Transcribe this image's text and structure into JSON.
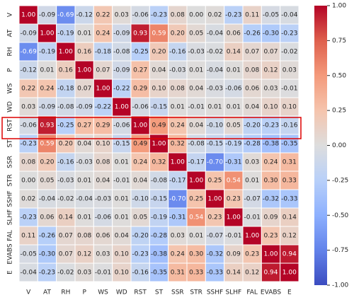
{
  "chart_data": {
    "type": "heatmap",
    "categories": [
      "V",
      "AT",
      "RH",
      "P",
      "WS",
      "WD",
      "RST",
      "ST",
      "SSR",
      "STR",
      "SSHF",
      "SLHF",
      "FAL",
      "EVABS",
      "E"
    ],
    "values": [
      [
        1.0,
        -0.09,
        -0.69,
        -0.12,
        0.22,
        0.03,
        -0.06,
        -0.23,
        0.08,
        0.0,
        0.02,
        -0.23,
        0.11,
        -0.05,
        -0.04
      ],
      [
        -0.09,
        1.0,
        -0.19,
        0.01,
        0.24,
        -0.09,
        0.93,
        0.59,
        0.2,
        0.05,
        -0.04,
        0.06,
        -0.26,
        -0.3,
        -0.23
      ],
      [
        -0.69,
        -0.19,
        1.0,
        0.16,
        -0.18,
        -0.08,
        -0.25,
        0.2,
        -0.16,
        -0.03,
        -0.02,
        0.14,
        0.07,
        0.07,
        -0.02
      ],
      [
        -0.12,
        0.01,
        0.16,
        1.0,
        0.07,
        -0.09,
        0.27,
        0.04,
        -0.03,
        0.01,
        -0.04,
        0.01,
        0.08,
        0.12,
        0.03
      ],
      [
        0.22,
        0.24,
        -0.18,
        0.07,
        1.0,
        -0.22,
        0.29,
        0.1,
        0.08,
        0.04,
        -0.03,
        -0.06,
        0.06,
        0.03,
        -0.01
      ],
      [
        0.03,
        -0.09,
        -0.08,
        -0.09,
        -0.22,
        1.0,
        -0.06,
        -0.15,
        0.01,
        -0.01,
        0.01,
        0.01,
        0.04,
        0.1,
        0.1
      ],
      [
        -0.06,
        0.93,
        -0.25,
        0.27,
        0.29,
        -0.06,
        1.0,
        0.49,
        0.24,
        0.04,
        -0.1,
        0.05,
        -0.2,
        -0.23,
        -0.16
      ],
      [
        -0.23,
        0.59,
        0.2,
        0.04,
        0.1,
        -0.15,
        0.49,
        1.0,
        0.32,
        -0.08,
        -0.15,
        -0.19,
        -0.28,
        -0.38,
        -0.35
      ],
      [
        0.08,
        0.2,
        -0.16,
        -0.03,
        0.08,
        0.01,
        0.24,
        0.32,
        1.0,
        -0.17,
        -0.7,
        -0.31,
        0.03,
        0.24,
        0.31
      ],
      [
        0.0,
        0.05,
        -0.03,
        0.01,
        0.04,
        -0.01,
        0.04,
        -0.08,
        -0.17,
        1.0,
        0.25,
        0.54,
        0.01,
        0.3,
        0.33
      ],
      [
        0.02,
        -0.04,
        -0.02,
        -0.04,
        -0.03,
        0.01,
        -0.1,
        -0.15,
        -0.7,
        0.25,
        1.0,
        0.23,
        -0.07,
        -0.32,
        -0.33
      ],
      [
        -0.23,
        0.06,
        0.14,
        0.01,
        -0.06,
        0.01,
        0.05,
        -0.19,
        -0.31,
        0.54,
        0.23,
        1.0,
        -0.01,
        0.09,
        0.14
      ],
      [
        0.11,
        -0.26,
        0.07,
        0.08,
        0.06,
        0.04,
        -0.2,
        -0.28,
        0.03,
        0.01,
        -0.07,
        -0.01,
        1.0,
        0.23,
        0.12
      ],
      [
        -0.05,
        -0.3,
        0.07,
        0.12,
        0.03,
        0.1,
        -0.23,
        -0.38,
        0.24,
        0.3,
        -0.32,
        0.09,
        0.23,
        1.0,
        0.94
      ],
      [
        -0.04,
        -0.23,
        -0.02,
        0.03,
        -0.01,
        0.1,
        -0.16,
        -0.35,
        0.31,
        0.33,
        -0.33,
        0.14,
        0.12,
        0.94,
        1.0
      ]
    ],
    "value_labels": [
      [
        "1.00",
        "-0.09",
        "-0.69",
        "-0.12",
        "0.22",
        "0.03",
        "-0.06",
        "-0.23",
        "0.08",
        "0.00",
        "0.02",
        "-0.23",
        "0.11",
        "-0.05",
        "-0.04"
      ],
      [
        "-0.09",
        "1.00",
        "-0.19",
        "0.01",
        "0.24",
        "-0.09",
        "0.93",
        "0.59",
        "0.20",
        "0.05",
        "-0.04",
        "0.06",
        "-0.26",
        "-0.30",
        "-0.23"
      ],
      [
        "-0.69",
        "-0.19",
        "1.00",
        "0.16",
        "-0.18",
        "-0.08",
        "-0.25",
        "0.20",
        "-0.16",
        "-0.03",
        "-0.02",
        "0.14",
        "0.07",
        "0.07",
        "-0.02"
      ],
      [
        "-0.12",
        "0.01",
        "0.16",
        "1.00",
        "0.07",
        "-0.09",
        "0.27",
        "0.04",
        "-0.03",
        "0.01",
        "-0.04",
        "0.01",
        "0.08",
        "0.12",
        "0.03"
      ],
      [
        "0.22",
        "0.24",
        "-0.18",
        "0.07",
        "1.00",
        "-0.22",
        "0.29",
        "0.10",
        "0.08",
        "0.04",
        "-0.03",
        "-0.06",
        "0.06",
        "0.03",
        "-0.01"
      ],
      [
        "0.03",
        "-0.09",
        "-0.08",
        "-0.09",
        "-0.22",
        "1.00",
        "-0.06",
        "-0.15",
        "0.01",
        "-0.01",
        "0.01",
        "0.01",
        "0.04",
        "0.10",
        "0.10"
      ],
      [
        "-0.06",
        "0.93",
        "-0.25",
        "0.27",
        "0.29",
        "-0.06",
        "1.00",
        "0.49",
        "0.24",
        "0.04",
        "-0.10",
        "0.05",
        "-0.20",
        "-0.23",
        "-0.16"
      ],
      [
        "-0.23",
        "0.59",
        "0.20",
        "0.04",
        "0.10",
        "-0.15",
        "0.49",
        "1.00",
        "0.32",
        "-0.08",
        "-0.15",
        "-0.19",
        "-0.28",
        "-0.38",
        "-0.35"
      ],
      [
        "0.08",
        "0.20",
        "-0.16",
        "-0.03",
        "0.08",
        "0.01",
        "0.24",
        "0.32",
        "1.00",
        "-0.17",
        "-0.70",
        "-0.31",
        "0.03",
        "0.24",
        "0.31"
      ],
      [
        "0.00",
        "0.05",
        "-0.03",
        "0.01",
        "0.04",
        "-0.01",
        "0.04",
        "-0.08",
        "-0.17",
        "1.00",
        "0.25",
        "0.54",
        "0.01",
        "0.30",
        "0.33"
      ],
      [
        "0.02",
        "-0.04",
        "-0.02",
        "-0.04",
        "-0.03",
        "0.01",
        "-0.10",
        "-0.15",
        "-0.70",
        "0.25",
        "1.00",
        "0.23",
        "-0.07",
        "-0.32",
        "-0.33"
      ],
      [
        "-0.23",
        "0.06",
        "0.14",
        "0.01",
        "-0.06",
        "0.01",
        "0.05",
        "-0.19",
        "-0.31",
        "0.54",
        "0.23",
        "1.00",
        "-0.01",
        "0.09",
        "0.14"
      ],
      [
        "0.11",
        "-0.26",
        "0.07",
        "0.08",
        "0.06",
        "0.04",
        "-0.20",
        "-0.28",
        "0.03",
        "0.01",
        "-0.07",
        "-0.01",
        "1.00",
        "0.23",
        "0.12"
      ],
      [
        "-0.05",
        "-0.30",
        "0.07",
        "0.12",
        "0.03",
        "0.10",
        "-0.23",
        "-0.38",
        "0.24",
        "0.30",
        "-0.32",
        "0.09",
        "0.23",
        "1.00",
        "0.94"
      ],
      [
        "-0.04",
        "-0.23",
        "-0.02",
        "0.03",
        "-0.01",
        "0.10",
        "-0.16",
        "-0.35",
        "0.31",
        "0.33",
        "-0.33",
        "0.14",
        "0.12",
        "0.94",
        "1.00"
      ]
    ],
    "vlim": [
      -1,
      1
    ],
    "cticks": [
      {
        "value": -1,
        "label": "-1.00"
      },
      {
        "value": -0.75,
        "label": "-0.75"
      },
      {
        "value": -0.5,
        "label": "-0.50"
      },
      {
        "value": -0.25,
        "label": "-0.25"
      },
      {
        "value": 0,
        "label": "0.00"
      },
      {
        "value": 0.25,
        "label": "0.25"
      },
      {
        "value": 0.5,
        "label": "0.50"
      },
      {
        "value": 0.75,
        "label": "0.75"
      },
      {
        "value": 1,
        "label": "1.00"
      }
    ]
  }
}
